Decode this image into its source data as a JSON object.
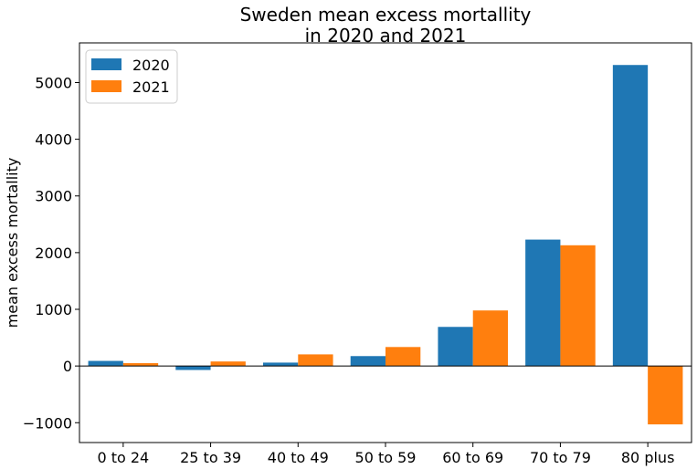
{
  "chart_data": {
    "type": "bar",
    "title_lines": [
      "Sweden mean excess mortallity",
      "in 2020 and 2021"
    ],
    "xlabel": "",
    "ylabel": "mean excess mortallity",
    "categories": [
      "0 to 24",
      "25 to 39",
      "40 to 49",
      "50 to 59",
      "60 to 69",
      "70 to 79",
      "80 plus"
    ],
    "series": [
      {
        "name": "2020",
        "color": "#1f77b4",
        "values": [
          90,
          -70,
          60,
          175,
          690,
          2230,
          5310
        ]
      },
      {
        "name": "2021",
        "color": "#ff7f0e",
        "values": [
          50,
          80,
          205,
          335,
          980,
          2130,
          -1030
        ]
      }
    ],
    "yticks": [
      -1000,
      0,
      1000,
      2000,
      3000,
      4000,
      5000
    ],
    "ytick_labels": [
      "−1000",
      "0",
      "1000",
      "2000",
      "3000",
      "4000",
      "5000"
    ],
    "ylim": [
      -1350,
      5700
    ],
    "zero_line": true,
    "grid": false,
    "legend_position": "top-left"
  }
}
